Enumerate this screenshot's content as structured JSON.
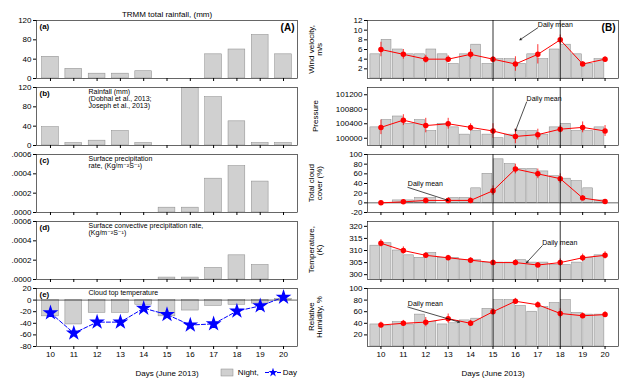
{
  "chart_data": [
    {
      "type": "bar",
      "title": "TRMM total rainfall, (mm)",
      "x": [
        10,
        11,
        12,
        13,
        14,
        15,
        16,
        17,
        18,
        19,
        20
      ],
      "values": [
        45,
        20,
        10,
        10,
        15,
        0,
        0,
        50,
        60,
        90,
        50
      ],
      "color": "#d0d0d0",
      "xlim": [
        9.4,
        20.6
      ],
      "xticks": [
        10,
        11,
        12,
        13,
        14,
        15,
        16,
        17,
        18,
        19,
        20
      ],
      "ylim": [
        0,
        120
      ],
      "yticks": [
        0,
        40,
        80,
        120
      ],
      "tick_labels": "y",
      "annotations": [
        "(a)",
        "(A)"
      ]
    },
    {
      "type": "bar",
      "x": [
        10,
        11,
        12,
        13,
        14,
        15,
        16,
        17,
        18,
        19,
        20
      ],
      "values": [
        38,
        5,
        10,
        30,
        5,
        0,
        120,
        100,
        50,
        5,
        5
      ],
      "color": "#d0d0d0",
      "xlim": [
        9.4,
        20.6
      ],
      "xticks": [
        10,
        11,
        12,
        13,
        14,
        15,
        16,
        17,
        18,
        19,
        20
      ],
      "ylim": [
        0,
        120
      ],
      "yticks": [
        0,
        40,
        80,
        120
      ],
      "tick_labels": "y",
      "annotations": [
        "(b)",
        "Rainfall (mm)\n(Dobhal et al., 2013;\nJoseph et al., 2013)"
      ]
    },
    {
      "type": "bar",
      "x": [
        10,
        11,
        12,
        13,
        14,
        15,
        16,
        17,
        18,
        19,
        20
      ],
      "values": [
        0,
        0,
        0,
        0,
        0,
        5e-05,
        5e-05,
        0.00035,
        0.00048,
        0.00032,
        0
      ],
      "color": "#d0d0d0",
      "xlim": [
        9.4,
        20.6
      ],
      "xticks": [
        10,
        11,
        12,
        13,
        14,
        15,
        16,
        17,
        18,
        19,
        20
      ],
      "ylim": [
        0,
        0.0006
      ],
      "yticks": [
        {
          "value": 0,
          "label": ".0000"
        },
        {
          "value": 0.0002,
          "label": ".0002"
        },
        {
          "value": 0.0004,
          "label": ".0004"
        },
        {
          "value": 0.0006,
          "label": ".0006"
        }
      ],
      "tick_labels": "y",
      "annotations": [
        "(c)",
        "Surface precipitation\nrate, (Kg/m⁻²S⁻¹)"
      ]
    },
    {
      "type": "bar",
      "x": [
        10,
        11,
        12,
        13,
        14,
        15,
        16,
        17,
        18,
        19,
        20
      ],
      "values": [
        0,
        0,
        0,
        0,
        0,
        2e-05,
        2e-05,
        0.00012,
        0.00025,
        0.00015,
        0
      ],
      "color": "#d0d0d0",
      "xlim": [
        9.4,
        20.6
      ],
      "xticks": [
        10,
        11,
        12,
        13,
        14,
        15,
        16,
        17,
        18,
        19,
        20
      ],
      "ylim": [
        0,
        0.0006
      ],
      "yticks": [
        {
          "value": 0,
          "label": ".0000"
        },
        {
          "value": 0.0002,
          "label": ".0002"
        },
        {
          "value": 0.0004,
          "label": ".0004"
        },
        {
          "value": 0.0006,
          "label": ".0006"
        }
      ],
      "tick_labels": "y",
      "annotations": [
        "(d)",
        "Surface convective precipitation rate,\n(Kg/m⁻²S⁻¹)"
      ]
    },
    {
      "type": "bar",
      "xlabel": "Days (June 2013)",
      "x": [
        10,
        11,
        12,
        13,
        14,
        15,
        16,
        17,
        18,
        19,
        20
      ],
      "series": [
        {
          "name": "Night,",
          "type": "bar",
          "color": "#d0d0d0",
          "values": [
            -28,
            -42,
            -22,
            -22,
            -8,
            -28,
            -18,
            -10,
            -8,
            -6,
            2
          ]
        },
        {
          "name": "Day",
          "type": "line",
          "color": "blue",
          "line_style": "dashed",
          "marker": "star",
          "values": [
            -22,
            -57,
            -38,
            -38,
            -14,
            -25,
            -43,
            -41,
            -19,
            -10,
            5
          ]
        }
      ],
      "legend": "lower right",
      "xlim": [
        9.4,
        20.6
      ],
      "xticks": [
        10,
        11,
        12,
        13,
        14,
        15,
        16,
        17,
        18,
        19,
        20
      ],
      "ylim": [
        -80,
        20
      ],
      "yticks": [
        -80,
        -60,
        -40,
        -20,
        0,
        20
      ],
      "annotations": [
        "(e)",
        "Cloud top temperature"
      ]
    },
    {
      "type": "bar",
      "ylabel": "Wind velocity,\nm/s",
      "x": [
        10,
        11,
        12,
        13,
        14,
        15,
        16,
        17,
        18,
        19,
        20
      ],
      "series": [
        {
          "type": "bar",
          "color": "#d0d0d0",
          "values": [
            5,
            6,
            5,
            5,
            5,
            3,
            4,
            5,
            6,
            5,
            4
          ]
        },
        {
          "type": "bar",
          "color": "#d0d0d0",
          "values": [
            8,
            5,
            6,
            3,
            7,
            4,
            3,
            4,
            7,
            3,
            null
          ]
        },
        {
          "type": "line",
          "color": "red",
          "marker": "circle",
          "values": [
            6.0,
            5.0,
            4.0,
            4.0,
            5.0,
            4.0,
            3.0,
            5.0,
            8.0,
            3.0,
            4.0
          ],
          "errors": [
            1.5,
            1.0,
            0.8,
            0.7,
            1.0,
            0.5,
            1.5,
            2.0,
            1.0,
            0.5,
            0.5
          ]
        }
      ],
      "vlines": [
        15,
        18
      ],
      "xlim": [
        9.4,
        20.6
      ],
      "xticks": [
        10,
        11,
        12,
        13,
        14,
        15,
        16,
        17,
        18,
        19,
        20
      ],
      "ylim": [
        0,
        12
      ],
      "yticks": [
        2,
        4,
        6,
        8,
        10,
        12
      ],
      "tick_labels": "y",
      "annotations": [
        "(B)",
        {
          "text": "Daily mean",
          "x": 16.2,
          "y": 8.0,
          "text_x": 17.0,
          "text_y": 10.5
        }
      ]
    },
    {
      "type": "bar",
      "ylabel": "Pressure",
      "x": [
        10,
        11,
        12,
        13,
        14,
        15,
        16,
        17,
        18,
        19,
        20
      ],
      "series": [
        {
          "type": "bar",
          "color": "#d0d0d0",
          "values": [
            100300,
            100600,
            100500,
            100400,
            100100,
            100100,
            100100,
            100200,
            100300,
            100200,
            100300
          ]
        },
        {
          "type": "bar",
          "color": "#d0d0d0",
          "values": [
            100500,
            100400,
            100200,
            100300,
            100200,
            100000,
            100200,
            100100,
            100400,
            100200,
            null
          ]
        },
        {
          "type": "line",
          "color": "red",
          "marker": "circle",
          "values": [
            100300,
            100500,
            100350,
            100400,
            100300,
            100200,
            100050,
            100100,
            100250,
            100300,
            100200
          ],
          "errors": [
            200,
            150,
            200,
            150,
            100,
            200,
            200,
            150,
            100,
            150,
            150
          ]
        }
      ],
      "vlines": [
        15,
        18
      ],
      "xlim": [
        9.4,
        20.6
      ],
      "xticks": [
        10,
        11,
        12,
        13,
        14,
        15,
        16,
        17,
        18,
        19,
        20
      ],
      "ylim": [
        99800,
        101400
      ],
      "yticks": [
        100000,
        100400,
        100800,
        101200
      ],
      "tick_labels": "y",
      "annotations": [
        {
          "text": "Daily mean",
          "x": 16.0,
          "y": 100200,
          "text_x": 16.5,
          "text_y": 101000
        }
      ]
    },
    {
      "type": "bar",
      "ylabel": "Total cloud\ncover (%)",
      "x": [
        10,
        11,
        12,
        13,
        14,
        15,
        16,
        17,
        18,
        19,
        20
      ],
      "series": [
        {
          "type": "bar",
          "color": "#d0d0d0",
          "values": [
            0,
            5,
            10,
            0,
            10,
            60,
            80,
            70,
            55,
            45,
            5
          ]
        },
        {
          "type": "bar",
          "color": "#d0d0d0",
          "values": [
            0,
            5,
            10,
            10,
            30,
            90,
            70,
            65,
            50,
            30,
            null
          ]
        },
        {
          "type": "line",
          "color": "red",
          "marker": "circle",
          "values": [
            0,
            2,
            5,
            5,
            5,
            25,
            70,
            60,
            50,
            10,
            3
          ],
          "errors": [
            2,
            2,
            5,
            5,
            5,
            10,
            10,
            10,
            10,
            5,
            3
          ]
        }
      ],
      "vlines": [
        15,
        18
      ],
      "xlim": [
        9.4,
        20.6
      ],
      "xticks": [
        10,
        11,
        12,
        13,
        14,
        15,
        16,
        17,
        18,
        19,
        20
      ],
      "ylim": [
        -20,
        100
      ],
      "yticks": [
        -20,
        0,
        20,
        40,
        60,
        80,
        100
      ],
      "tick_labels": "y",
      "annotations": [
        {
          "text": "Daily mean",
          "x": 13.0,
          "y": 5,
          "text_x": 11.2,
          "text_y": 32
        }
      ]
    },
    {
      "type": "bar",
      "ylabel": "Temperature,\n(K)",
      "x": [
        10,
        11,
        12,
        13,
        14,
        15,
        16,
        17,
        18,
        19,
        20
      ],
      "series": [
        {
          "type": "bar",
          "color": "#d0d0d0",
          "values": [
            312,
            310,
            307,
            307,
            306,
            305,
            305,
            305,
            304,
            305,
            308
          ]
        },
        {
          "type": "bar",
          "color": "#d0d0d0",
          "values": [
            313,
            308,
            309,
            307,
            306,
            305,
            306,
            305,
            304,
            307,
            null
          ]
        },
        {
          "type": "line",
          "color": "red",
          "marker": "circle",
          "values": [
            313,
            310,
            308,
            307,
            306,
            305,
            305,
            304,
            305,
            307,
            308
          ],
          "errors": [
            1.5,
            1.5,
            1.0,
            1.0,
            1.0,
            1.0,
            1.0,
            1.0,
            1.5,
            1.5,
            1.5
          ]
        }
      ],
      "vlines": [
        15,
        18
      ],
      "xlim": [
        9.4,
        20.6
      ],
      "xticks": [
        10,
        11,
        12,
        13,
        14,
        15,
        16,
        17,
        18,
        19,
        20
      ],
      "ylim": [
        298,
        322
      ],
      "yticks": [
        300,
        305,
        310,
        315,
        320
      ],
      "tick_labels": "y",
      "annotations": [
        {
          "text": "Daily mean",
          "x": 16.5,
          "y": 305,
          "text_x": 17.2,
          "text_y": 312
        }
      ]
    },
    {
      "type": "bar",
      "ylabel": "Relative\nHumidity, %",
      "xlabel": "Days (June 2013)",
      "x": [
        10,
        11,
        12,
        13,
        14,
        15,
        16,
        17,
        18,
        19,
        20
      ],
      "series": [
        {
          "type": "bar",
          "color": "#d0d0d0",
          "values": [
            38,
            42,
            55,
            38,
            45,
            65,
            80,
            60,
            75,
            58,
            55
          ]
        },
        {
          "type": "bar",
          "color": "#d0d0d0",
          "values": [
            35,
            38,
            42,
            40,
            48,
            80,
            70,
            68,
            80,
            55,
            null
          ]
        },
        {
          "type": "line",
          "color": "red",
          "marker": "circle",
          "values": [
            37,
            40,
            42,
            48,
            40,
            60,
            78,
            72,
            57,
            53,
            55
          ],
          "errors": [
            5,
            5,
            8,
            8,
            5,
            5,
            5,
            5,
            8,
            5,
            5
          ]
        }
      ],
      "vlines": [
        15,
        18
      ],
      "xlim": [
        9.4,
        20.6
      ],
      "xticks": [
        10,
        11,
        12,
        13,
        14,
        15,
        16,
        17,
        18,
        19,
        20
      ],
      "ylim": [
        0,
        100
      ],
      "yticks": [
        20,
        40,
        60,
        80,
        100
      ],
      "annotations": [
        {
          "text": "Daily mean",
          "x": 13.5,
          "y": 42,
          "text_x": 11.2,
          "text_y": 68
        }
      ]
    }
  ]
}
